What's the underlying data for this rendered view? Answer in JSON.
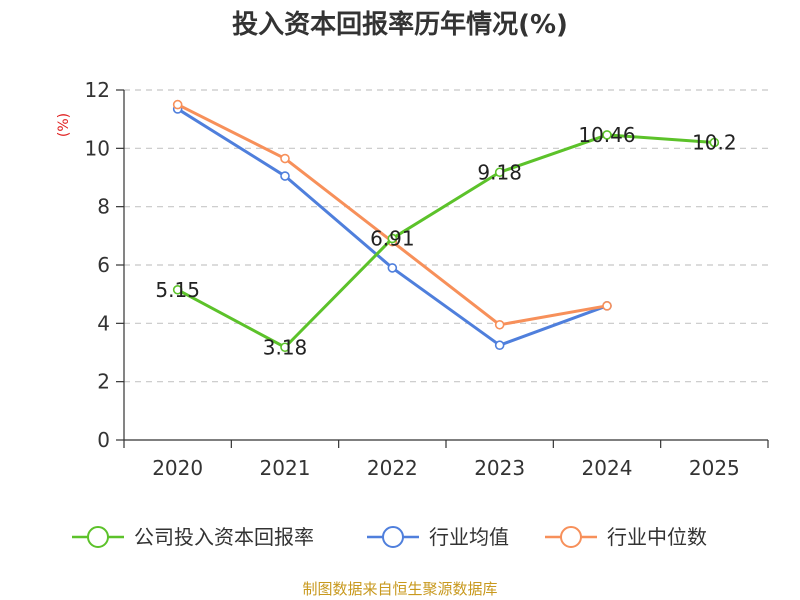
{
  "chart_data": {
    "type": "line",
    "title": "投入资本回报率历年情况(%)",
    "ylabel": "(%)",
    "xlabel": "",
    "ylim": [
      0,
      12
    ],
    "yticks": [
      0,
      2,
      4,
      6,
      8,
      10,
      12
    ],
    "categories": [
      "2020",
      "2021",
      "2022",
      "2023",
      "2024",
      "2025"
    ],
    "grid": true,
    "legend_position": "bottom",
    "series": [
      {
        "name": "公司投入资本回报率",
        "color": "#5cc22a",
        "values": [
          5.15,
          3.18,
          6.91,
          9.18,
          10.46,
          10.2
        ],
        "labels": [
          "5.15",
          "3.18",
          "6.91",
          "9.18",
          "10.46",
          "10.2"
        ]
      },
      {
        "name": "行业均值",
        "color": "#4f7fdc",
        "values": [
          11.35,
          9.05,
          5.9,
          3.25,
          4.6,
          null
        ]
      },
      {
        "name": "行业中位数",
        "color": "#f7905a",
        "values": [
          11.5,
          9.65,
          6.8,
          3.95,
          4.6,
          null
        ]
      }
    ]
  },
  "source_note": "制图数据来自恒生聚源数据库"
}
